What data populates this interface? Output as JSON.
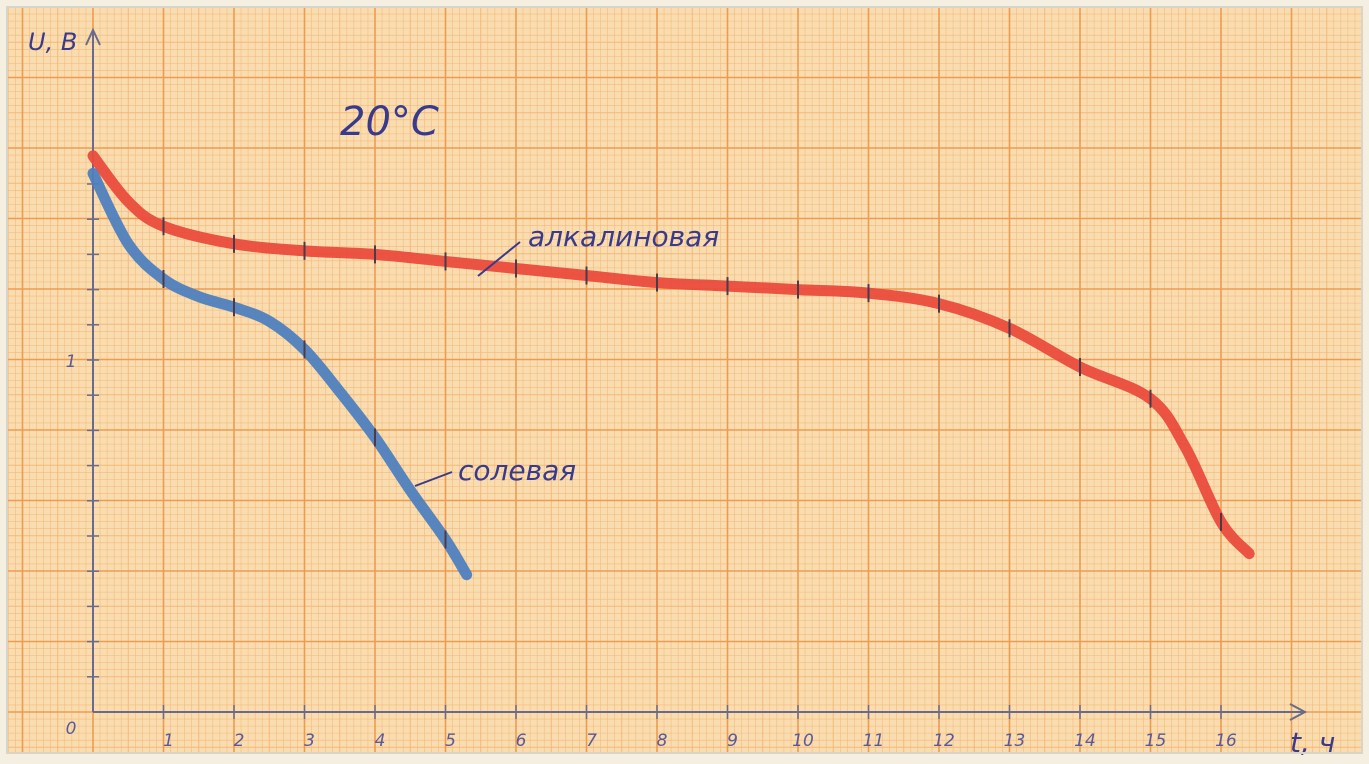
{
  "chart_data": {
    "type": "line",
    "title": "20°C",
    "xlabel": "t, ч",
    "ylabel": "U, В",
    "xlim": [
      0,
      17
    ],
    "ylim": [
      0,
      2
    ],
    "grid": true,
    "x_tick_labels": [
      "0",
      "1",
      "2",
      "3",
      "4",
      "5",
      "6",
      "7",
      "8",
      "9",
      "10",
      "11",
      "12",
      "13",
      "14",
      "15",
      "16"
    ],
    "y_tick_labels": [
      "1"
    ],
    "series": [
      {
        "name": "алкалиновая",
        "color": "#ea4b3c",
        "x": [
          0,
          0.5,
          1,
          2,
          3,
          4,
          5,
          6,
          7,
          8,
          9,
          10,
          11,
          12,
          13,
          14,
          15,
          15.5,
          16,
          16.4
        ],
        "y": [
          1.58,
          1.45,
          1.38,
          1.33,
          1.31,
          1.3,
          1.28,
          1.26,
          1.24,
          1.22,
          1.21,
          1.2,
          1.19,
          1.16,
          1.09,
          0.98,
          0.89,
          0.75,
          0.54,
          0.45
        ]
      },
      {
        "name": "солевая",
        "color": "#4f7fbf",
        "x": [
          0,
          0.5,
          1,
          1.5,
          2,
          2.5,
          3,
          3.5,
          4,
          4.5,
          5,
          5.3
        ],
        "y": [
          1.53,
          1.33,
          1.23,
          1.18,
          1.15,
          1.11,
          1.03,
          0.91,
          0.78,
          0.63,
          0.49,
          0.39
        ]
      }
    ],
    "annotations": [
      {
        "text": "алкалиновая",
        "series": "алкалиновая"
      },
      {
        "text": "солевая",
        "series": "солевая"
      }
    ],
    "colors": {
      "paper": "#f9ddb0",
      "grid_fine": "#f3b878",
      "grid_major": "#ee9b50",
      "axis": "#6a6a8a",
      "ink": "#3a3a8c"
    }
  }
}
